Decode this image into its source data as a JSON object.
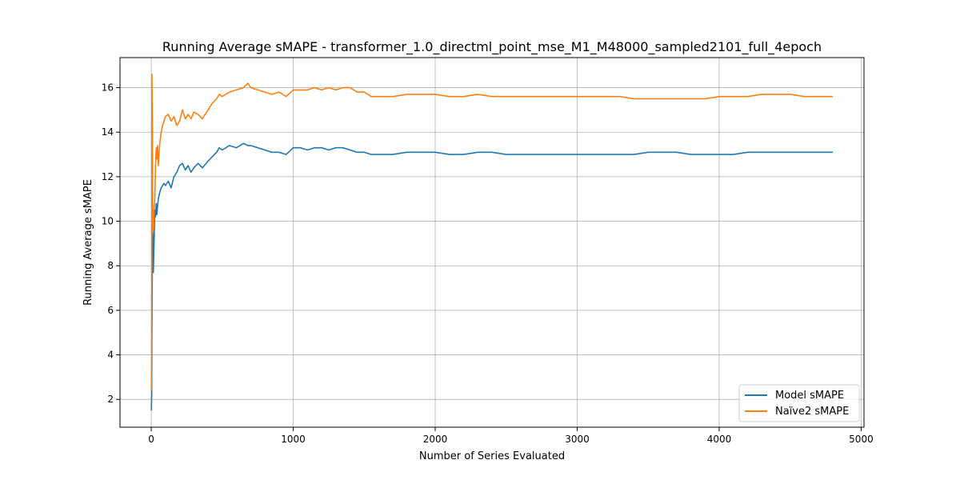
{
  "chart_data": {
    "type": "line",
    "title": "Running Average sMAPE - transformer_1.0_directml_point_mse_M1_M48000_sampled2101_full_4epoch",
    "xlabel": "Number of Series Evaluated",
    "ylabel": "Running Average sMAPE",
    "xlim": [
      -220,
      5020
    ],
    "ylim": [
      0.75,
      17.35
    ],
    "xticks": [
      0,
      1000,
      2000,
      3000,
      4000,
      5000
    ],
    "xtick_labels": [
      "0",
      "1000",
      "2000",
      "3000",
      "4000",
      "5000"
    ],
    "yticks": [
      2,
      4,
      6,
      8,
      10,
      12,
      14,
      16
    ],
    "ytick_labels": [
      "2",
      "4",
      "6",
      "8",
      "10",
      "12",
      "14",
      "16"
    ],
    "grid": true,
    "legend_position": "lower-right",
    "series": [
      {
        "name": "Model sMAPE",
        "color": "#1f77b4",
        "x": [
          1,
          3,
          5,
          8,
          10,
          12,
          15,
          18,
          20,
          25,
          30,
          35,
          40,
          45,
          50,
          60,
          70,
          80,
          90,
          100,
          120,
          140,
          160,
          180,
          200,
          220,
          240,
          260,
          280,
          300,
          330,
          360,
          400,
          430,
          460,
          480,
          500,
          550,
          600,
          650,
          680,
          700,
          750,
          800,
          850,
          900,
          950,
          1000,
          1050,
          1100,
          1150,
          1200,
          1250,
          1300,
          1350,
          1400,
          1450,
          1500,
          1550,
          1600,
          1700,
          1800,
          1900,
          2000,
          2100,
          2200,
          2300,
          2400,
          2500,
          2600,
          2700,
          2800,
          2900,
          3000,
          3100,
          3200,
          3300,
          3400,
          3500,
          3600,
          3700,
          3800,
          3900,
          4000,
          4100,
          4200,
          4300,
          4400,
          4500,
          4600,
          4700,
          4800
        ],
        "y": [
          1.5,
          2.2,
          4.5,
          8.5,
          10.3,
          9.0,
          7.7,
          8.5,
          9.0,
          10.5,
          10.2,
          10.8,
          10.3,
          10.7,
          11.0,
          11.3,
          11.5,
          11.6,
          11.7,
          11.6,
          11.8,
          11.5,
          12.0,
          12.2,
          12.5,
          12.6,
          12.3,
          12.5,
          12.2,
          12.4,
          12.6,
          12.4,
          12.7,
          12.9,
          13.1,
          13.3,
          13.2,
          13.4,
          13.3,
          13.5,
          13.4,
          13.4,
          13.3,
          13.2,
          13.1,
          13.1,
          13.0,
          13.3,
          13.3,
          13.2,
          13.3,
          13.3,
          13.2,
          13.3,
          13.3,
          13.2,
          13.1,
          13.1,
          13.0,
          13.0,
          13.0,
          13.1,
          13.1,
          13.1,
          13.0,
          13.0,
          13.1,
          13.1,
          13.0,
          13.0,
          13.0,
          13.0,
          13.0,
          13.0,
          13.0,
          13.0,
          13.0,
          13.0,
          13.1,
          13.1,
          13.1,
          13.0,
          13.0,
          13.0,
          13.0,
          13.1,
          13.1,
          13.1,
          13.1,
          13.1,
          13.1,
          13.1
        ]
      },
      {
        "name": "Naïve2 sMAPE",
        "color": "#ff7f0e",
        "x": [
          1,
          3,
          5,
          8,
          10,
          12,
          15,
          18,
          20,
          25,
          30,
          35,
          40,
          45,
          50,
          60,
          70,
          80,
          90,
          100,
          120,
          140,
          160,
          180,
          200,
          220,
          240,
          260,
          280,
          300,
          330,
          360,
          400,
          430,
          460,
          480,
          500,
          550,
          600,
          650,
          680,
          700,
          750,
          800,
          850,
          900,
          950,
          1000,
          1050,
          1100,
          1150,
          1200,
          1250,
          1300,
          1350,
          1400,
          1450,
          1500,
          1550,
          1600,
          1700,
          1800,
          1900,
          2000,
          2100,
          2200,
          2300,
          2400,
          2500,
          2600,
          2700,
          2800,
          2900,
          3000,
          3100,
          3200,
          3300,
          3400,
          3500,
          3600,
          3700,
          3800,
          3900,
          4000,
          4100,
          4200,
          4300,
          4400,
          4500,
          4600,
          4700,
          4800
        ],
        "y": [
          2.4,
          5.0,
          16.6,
          14.5,
          9.5,
          10.5,
          9.6,
          9.8,
          10.5,
          11.0,
          12.5,
          13.3,
          12.8,
          13.4,
          12.5,
          13.5,
          14.0,
          14.3,
          14.5,
          14.7,
          14.8,
          14.5,
          14.7,
          14.3,
          14.5,
          15.0,
          14.6,
          14.8,
          14.6,
          14.9,
          14.8,
          14.6,
          15.0,
          15.3,
          15.5,
          15.7,
          15.6,
          15.8,
          15.9,
          16.0,
          16.2,
          16.0,
          15.9,
          15.8,
          15.7,
          15.8,
          15.6,
          15.9,
          15.9,
          15.9,
          16.0,
          15.9,
          16.0,
          15.9,
          16.0,
          16.0,
          15.8,
          15.8,
          15.6,
          15.6,
          15.6,
          15.7,
          15.7,
          15.7,
          15.6,
          15.6,
          15.7,
          15.6,
          15.6,
          15.6,
          15.6,
          15.6,
          15.6,
          15.6,
          15.6,
          15.6,
          15.6,
          15.5,
          15.5,
          15.5,
          15.5,
          15.5,
          15.5,
          15.6,
          15.6,
          15.6,
          15.7,
          15.7,
          15.7,
          15.6,
          15.6,
          15.6
        ]
      }
    ]
  }
}
